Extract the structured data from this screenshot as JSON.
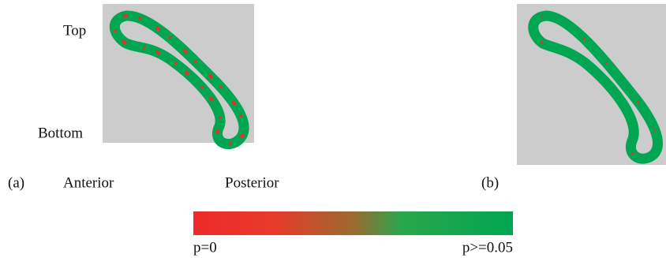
{
  "labels": {
    "top": "Top",
    "bottom": "Bottom",
    "anterior": "Anterior",
    "posterior": "Posterior"
  },
  "panels": [
    {
      "label": "(a)"
    },
    {
      "label": "(b)"
    }
  ],
  "colorbar": {
    "min_label": "p=0",
    "max_label": "p>=0.05"
  }
}
